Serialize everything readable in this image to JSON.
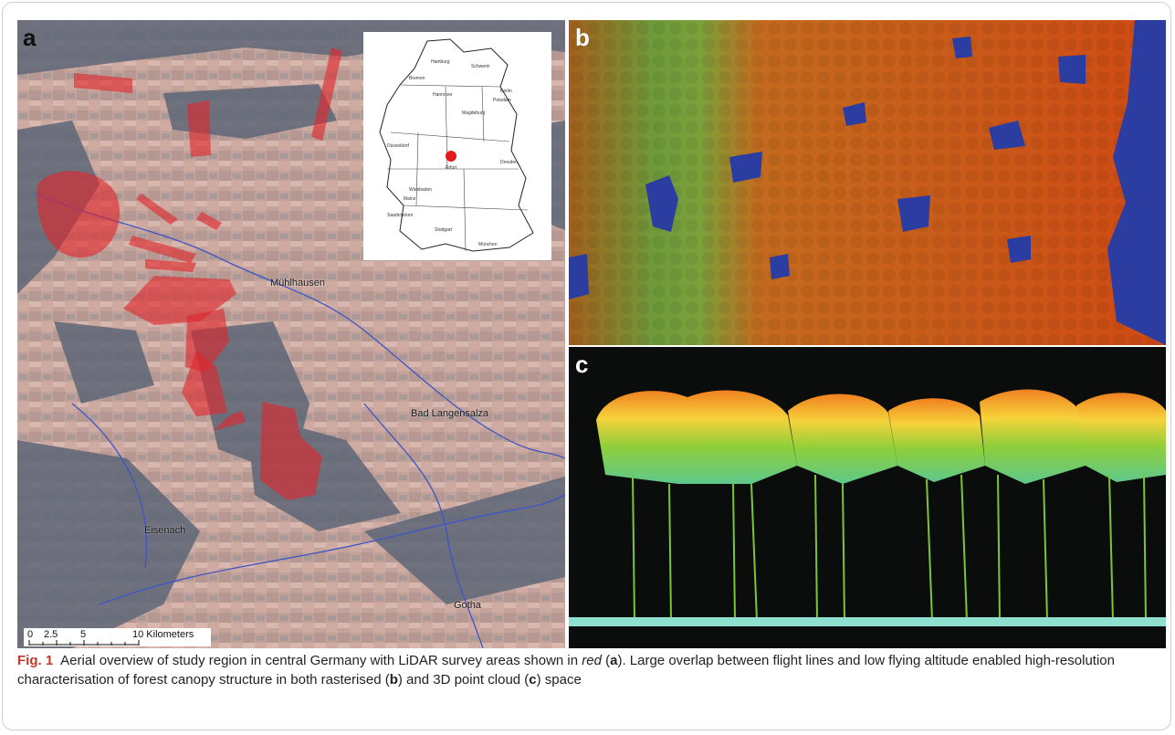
{
  "panels": {
    "a": {
      "letter": "a",
      "places": {
        "muhlhausen": "Mühlhausen",
        "bad_langensalza": "Bad Langensalza",
        "eisenach": "Eisenach",
        "gotha": "Gotha"
      },
      "inset_cities": {
        "hamburg": "Hamburg",
        "schwerin": "Schwerin",
        "bremen": "Bremen",
        "hannover": "Hannover",
        "berlin": "Berlin",
        "potsdam": "Potsdam",
        "magdeburg": "Magdeburg",
        "dusseldorf": "Düsseldorf",
        "erfurt": "Erfurt",
        "dresden": "Dresden",
        "wiesbaden": "Wiesbaden",
        "mainz": "Mainz",
        "saarbrucken": "Saarbrücken",
        "stuttgart": "Stuttgart",
        "munchen": "München"
      },
      "scale": {
        "t0": "0",
        "t1": "2.5",
        "t2": "5",
        "t3": "10 Kilometers"
      },
      "colors": {
        "survey_area": "#e0262b",
        "location_marker": "#e31b1b"
      }
    },
    "b": {
      "letter": "b"
    },
    "c": {
      "letter": "c"
    }
  },
  "caption": {
    "label": "Fig. 1",
    "part1": "Aerial overview of study region in central Germany with LiDAR survey areas shown in ",
    "red_word": "red",
    "part2": " (",
    "ref_a": "a",
    "part3": "). Large overlap between flight lines and low flying altitude enabled high-resolution characterisation of forest canopy structure in both rasterised (",
    "ref_b": "b",
    "part4": ") and 3D point cloud (",
    "ref_c": "c",
    "part5": ") space"
  }
}
